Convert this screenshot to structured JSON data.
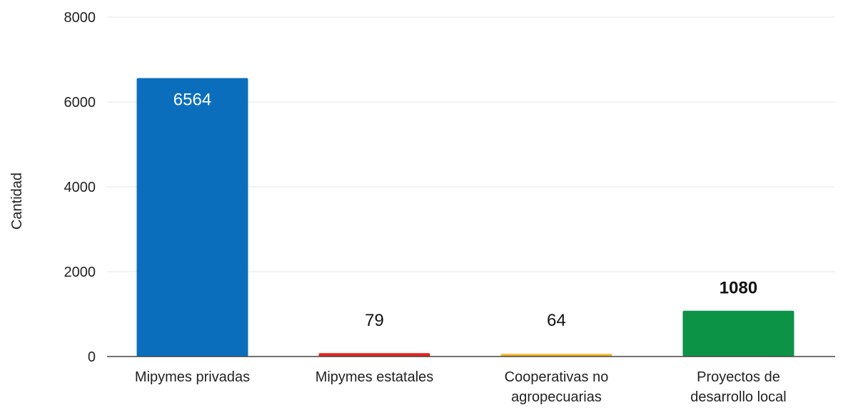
{
  "chart_data": {
    "type": "bar",
    "title": "",
    "xlabel": "",
    "ylabel": "Cantidad",
    "ylim": [
      0,
      8000
    ],
    "yticks": [
      0,
      2000,
      4000,
      6000,
      8000
    ],
    "grid": true,
    "legend": "none",
    "categories": [
      [
        "Mipymes privadas"
      ],
      [
        "Mipymes estatales"
      ],
      [
        "Cooperativas no",
        "agropecuarias"
      ],
      [
        "Proyectos de",
        "desarrollo local"
      ]
    ],
    "values": [
      6564,
      79,
      64,
      1080
    ],
    "colors": [
      "#0a6ebd",
      "#e8231e",
      "#f2b630",
      "#0d9345"
    ],
    "data_labels": [
      "6564",
      "79",
      "64",
      "1080"
    ],
    "data_label_inside": [
      true,
      false,
      false,
      false
    ]
  }
}
